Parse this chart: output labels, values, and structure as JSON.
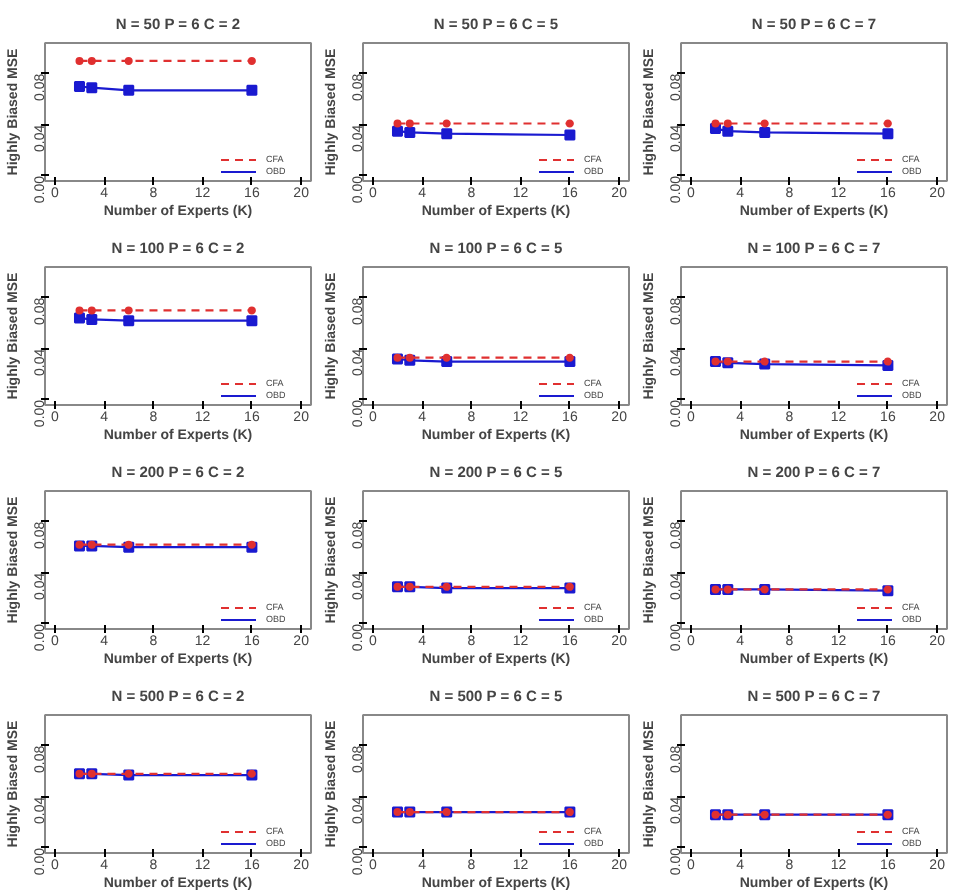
{
  "chart_data": [
    {
      "type": "line",
      "title": "N = 50 P = 6 C = 2",
      "xlabel": "Number of Experts (K)",
      "ylabel": "Highly Biased MSE",
      "x": [
        2,
        3,
        6,
        16
      ],
      "xlim": [
        -0.8,
        20.8
      ],
      "xticks": [
        0,
        4,
        8,
        12,
        16,
        20
      ],
      "ylim": [
        -0.004,
        0.104
      ],
      "yticks": [
        {
          "value": 0,
          "label": "0.00"
        },
        {
          "value": 0.04,
          "label": "0.04"
        },
        {
          "value": 0.08,
          "label": "0.08"
        }
      ],
      "legend": "bottom right",
      "series": [
        {
          "name": "CFA",
          "color": "#e03030",
          "line_style": "dashed",
          "marker": "circle",
          "values": [
            0.09,
            0.09,
            0.09,
            0.09
          ]
        },
        {
          "name": "OBD",
          "color": "#1a1ad0",
          "line_style": "solid",
          "marker": "square",
          "values": [
            0.07,
            0.069,
            0.067,
            0.067
          ]
        }
      ]
    },
    {
      "type": "line",
      "title": "N = 50 P = 6 C = 5",
      "xlabel": "Number of Experts (K)",
      "ylabel": "Highly Biased MSE",
      "x": [
        2,
        3,
        6,
        16
      ],
      "xlim": [
        -0.8,
        20.8
      ],
      "xticks": [
        0,
        4,
        8,
        12,
        16,
        20
      ],
      "ylim": [
        -0.004,
        0.104
      ],
      "yticks": [
        {
          "value": 0,
          "label": "0.00"
        },
        {
          "value": 0.04,
          "label": "0.04"
        },
        {
          "value": 0.08,
          "label": "0.08"
        }
      ],
      "legend": "bottom right",
      "series": [
        {
          "name": "CFA",
          "color": "#e03030",
          "line_style": "dashed",
          "marker": "circle",
          "values": [
            0.041,
            0.041,
            0.041,
            0.041
          ]
        },
        {
          "name": "OBD",
          "color": "#1a1ad0",
          "line_style": "solid",
          "marker": "square",
          "values": [
            0.035,
            0.034,
            0.033,
            0.032
          ]
        }
      ]
    },
    {
      "type": "line",
      "title": "N = 50 P = 6 C = 7",
      "xlabel": "Number of Experts (K)",
      "ylabel": "Highly Biased MSE",
      "x": [
        2,
        3,
        6,
        16
      ],
      "xlim": [
        -0.8,
        20.8
      ],
      "xticks": [
        0,
        4,
        8,
        12,
        16,
        20
      ],
      "ylim": [
        -0.004,
        0.104
      ],
      "yticks": [
        {
          "value": 0,
          "label": "0.00"
        },
        {
          "value": 0.04,
          "label": "0.04"
        },
        {
          "value": 0.08,
          "label": "0.08"
        }
      ],
      "legend": "bottom right",
      "series": [
        {
          "name": "CFA",
          "color": "#e03030",
          "line_style": "dashed",
          "marker": "circle",
          "values": [
            0.041,
            0.041,
            0.041,
            0.041
          ]
        },
        {
          "name": "OBD",
          "color": "#1a1ad0",
          "line_style": "solid",
          "marker": "square",
          "values": [
            0.037,
            0.035,
            0.034,
            0.033
          ]
        }
      ]
    },
    {
      "type": "line",
      "title": "N = 100 P = 6 C = 2",
      "xlabel": "Number of Experts (K)",
      "ylabel": "Highly Biased MSE",
      "x": [
        2,
        3,
        6,
        16
      ],
      "xlim": [
        -0.8,
        20.8
      ],
      "xticks": [
        0,
        4,
        8,
        12,
        16,
        20
      ],
      "ylim": [
        -0.004,
        0.104
      ],
      "yticks": [
        {
          "value": 0,
          "label": "0.00"
        },
        {
          "value": 0.04,
          "label": "0.04"
        },
        {
          "value": 0.08,
          "label": "0.08"
        }
      ],
      "legend": "bottom right",
      "series": [
        {
          "name": "CFA",
          "color": "#e03030",
          "line_style": "dashed",
          "marker": "circle",
          "values": [
            0.07,
            0.07,
            0.07,
            0.07
          ]
        },
        {
          "name": "OBD",
          "color": "#1a1ad0",
          "line_style": "solid",
          "marker": "square",
          "values": [
            0.064,
            0.063,
            0.062,
            0.062
          ]
        }
      ]
    },
    {
      "type": "line",
      "title": "N = 100 P = 6 C = 5",
      "xlabel": "Number of Experts (K)",
      "ylabel": "Highly Biased MSE",
      "x": [
        2,
        3,
        6,
        16
      ],
      "xlim": [
        -0.8,
        20.8
      ],
      "xticks": [
        0,
        4,
        8,
        12,
        16,
        20
      ],
      "ylim": [
        -0.004,
        0.104
      ],
      "yticks": [
        {
          "value": 0,
          "label": "0.00"
        },
        {
          "value": 0.04,
          "label": "0.04"
        },
        {
          "value": 0.08,
          "label": "0.08"
        }
      ],
      "legend": "bottom right",
      "series": [
        {
          "name": "CFA",
          "color": "#e03030",
          "line_style": "dashed",
          "marker": "circle",
          "values": [
            0.033,
            0.033,
            0.033,
            0.033
          ]
        },
        {
          "name": "OBD",
          "color": "#1a1ad0",
          "line_style": "solid",
          "marker": "square",
          "values": [
            0.032,
            0.031,
            0.03,
            0.03
          ]
        }
      ]
    },
    {
      "type": "line",
      "title": "N = 100 P = 6 C = 7",
      "xlabel": "Number of Experts (K)",
      "ylabel": "Highly Biased MSE",
      "x": [
        2,
        3,
        6,
        16
      ],
      "xlim": [
        -0.8,
        20.8
      ],
      "xticks": [
        0,
        4,
        8,
        12,
        16,
        20
      ],
      "ylim": [
        -0.004,
        0.104
      ],
      "yticks": [
        {
          "value": 0,
          "label": "0.00"
        },
        {
          "value": 0.04,
          "label": "0.04"
        },
        {
          "value": 0.08,
          "label": "0.08"
        }
      ],
      "legend": "bottom right",
      "series": [
        {
          "name": "CFA",
          "color": "#e03030",
          "line_style": "dashed",
          "marker": "circle",
          "values": [
            0.03,
            0.03,
            0.03,
            0.03
          ]
        },
        {
          "name": "OBD",
          "color": "#1a1ad0",
          "line_style": "solid",
          "marker": "square",
          "values": [
            0.03,
            0.029,
            0.028,
            0.027
          ]
        }
      ]
    },
    {
      "type": "line",
      "title": "N = 200 P = 6 C = 2",
      "xlabel": "Number of Experts (K)",
      "ylabel": "Highly Biased MSE",
      "x": [
        2,
        3,
        6,
        16
      ],
      "xlim": [
        -0.8,
        20.8
      ],
      "xticks": [
        0,
        4,
        8,
        12,
        16,
        20
      ],
      "ylim": [
        -0.004,
        0.104
      ],
      "yticks": [
        {
          "value": 0,
          "label": "0.00"
        },
        {
          "value": 0.04,
          "label": "0.04"
        },
        {
          "value": 0.08,
          "label": "0.08"
        }
      ],
      "legend": "bottom right",
      "series": [
        {
          "name": "CFA",
          "color": "#e03030",
          "line_style": "dashed",
          "marker": "circle",
          "values": [
            0.062,
            0.062,
            0.062,
            0.062
          ]
        },
        {
          "name": "OBD",
          "color": "#1a1ad0",
          "line_style": "solid",
          "marker": "square",
          "values": [
            0.061,
            0.061,
            0.06,
            0.06
          ]
        }
      ]
    },
    {
      "type": "line",
      "title": "N = 200 P = 6 C = 5",
      "xlabel": "Number of Experts (K)",
      "ylabel": "Highly Biased MSE",
      "x": [
        2,
        3,
        6,
        16
      ],
      "xlim": [
        -0.8,
        20.8
      ],
      "xticks": [
        0,
        4,
        8,
        12,
        16,
        20
      ],
      "ylim": [
        -0.004,
        0.104
      ],
      "yticks": [
        {
          "value": 0,
          "label": "0.00"
        },
        {
          "value": 0.04,
          "label": "0.04"
        },
        {
          "value": 0.08,
          "label": "0.08"
        }
      ],
      "legend": "bottom right",
      "series": [
        {
          "name": "CFA",
          "color": "#e03030",
          "line_style": "dashed",
          "marker": "circle",
          "values": [
            0.029,
            0.029,
            0.029,
            0.029
          ]
        },
        {
          "name": "OBD",
          "color": "#1a1ad0",
          "line_style": "solid",
          "marker": "square",
          "values": [
            0.029,
            0.029,
            0.028,
            0.028
          ]
        }
      ]
    },
    {
      "type": "line",
      "title": "N = 200 P = 6 C = 7",
      "xlabel": "Number of Experts (K)",
      "ylabel": "Highly Biased MSE",
      "x": [
        2,
        3,
        6,
        16
      ],
      "xlim": [
        -0.8,
        20.8
      ],
      "xticks": [
        0,
        4,
        8,
        12,
        16,
        20
      ],
      "ylim": [
        -0.004,
        0.104
      ],
      "yticks": [
        {
          "value": 0,
          "label": "0.00"
        },
        {
          "value": 0.04,
          "label": "0.04"
        },
        {
          "value": 0.08,
          "label": "0.08"
        }
      ],
      "legend": "bottom right",
      "series": [
        {
          "name": "CFA",
          "color": "#e03030",
          "line_style": "dashed",
          "marker": "circle",
          "values": [
            0.027,
            0.027,
            0.027,
            0.027
          ]
        },
        {
          "name": "OBD",
          "color": "#1a1ad0",
          "line_style": "solid",
          "marker": "square",
          "values": [
            0.027,
            0.027,
            0.027,
            0.026
          ]
        }
      ]
    },
    {
      "type": "line",
      "title": "N = 500 P = 6 C = 2",
      "xlabel": "Number of Experts (K)",
      "ylabel": "Highly Biased MSE",
      "x": [
        2,
        3,
        6,
        16
      ],
      "xlim": [
        -0.8,
        20.8
      ],
      "xticks": [
        0,
        4,
        8,
        12,
        16,
        20
      ],
      "ylim": [
        -0.004,
        0.104
      ],
      "yticks": [
        {
          "value": 0,
          "label": "0.00"
        },
        {
          "value": 0.04,
          "label": "0.04"
        },
        {
          "value": 0.08,
          "label": "0.08"
        }
      ],
      "legend": "bottom right",
      "series": [
        {
          "name": "CFA",
          "color": "#e03030",
          "line_style": "dashed",
          "marker": "circle",
          "values": [
            0.058,
            0.058,
            0.058,
            0.058
          ]
        },
        {
          "name": "OBD",
          "color": "#1a1ad0",
          "line_style": "solid",
          "marker": "square",
          "values": [
            0.058,
            0.058,
            0.057,
            0.057
          ]
        }
      ]
    },
    {
      "type": "line",
      "title": "N = 500 P = 6 C = 5",
      "xlabel": "Number of Experts (K)",
      "ylabel": "Highly Biased MSE",
      "x": [
        2,
        3,
        6,
        16
      ],
      "xlim": [
        -0.8,
        20.8
      ],
      "xticks": [
        0,
        4,
        8,
        12,
        16,
        20
      ],
      "ylim": [
        -0.004,
        0.104
      ],
      "yticks": [
        {
          "value": 0,
          "label": "0.00"
        },
        {
          "value": 0.04,
          "label": "0.04"
        },
        {
          "value": 0.08,
          "label": "0.08"
        }
      ],
      "legend": "bottom right",
      "series": [
        {
          "name": "CFA",
          "color": "#e03030",
          "line_style": "dashed",
          "marker": "circle",
          "values": [
            0.028,
            0.028,
            0.028,
            0.028
          ]
        },
        {
          "name": "OBD",
          "color": "#1a1ad0",
          "line_style": "solid",
          "marker": "square",
          "values": [
            0.028,
            0.028,
            0.028,
            0.028
          ]
        }
      ]
    },
    {
      "type": "line",
      "title": "N = 500 P = 6 C = 7",
      "xlabel": "Number of Experts (K)",
      "ylabel": "Highly Biased MSE",
      "x": [
        2,
        3,
        6,
        16
      ],
      "xlim": [
        -0.8,
        20.8
      ],
      "xticks": [
        0,
        4,
        8,
        12,
        16,
        20
      ],
      "ylim": [
        -0.004,
        0.104
      ],
      "yticks": [
        {
          "value": 0,
          "label": "0.00"
        },
        {
          "value": 0.04,
          "label": "0.04"
        },
        {
          "value": 0.08,
          "label": "0.08"
        }
      ],
      "legend": "bottom right",
      "series": [
        {
          "name": "CFA",
          "color": "#e03030",
          "line_style": "dashed",
          "marker": "circle",
          "values": [
            0.026,
            0.026,
            0.026,
            0.026
          ]
        },
        {
          "name": "OBD",
          "color": "#1a1ad0",
          "line_style": "solid",
          "marker": "square",
          "values": [
            0.026,
            0.026,
            0.026,
            0.026
          ]
        }
      ]
    }
  ]
}
